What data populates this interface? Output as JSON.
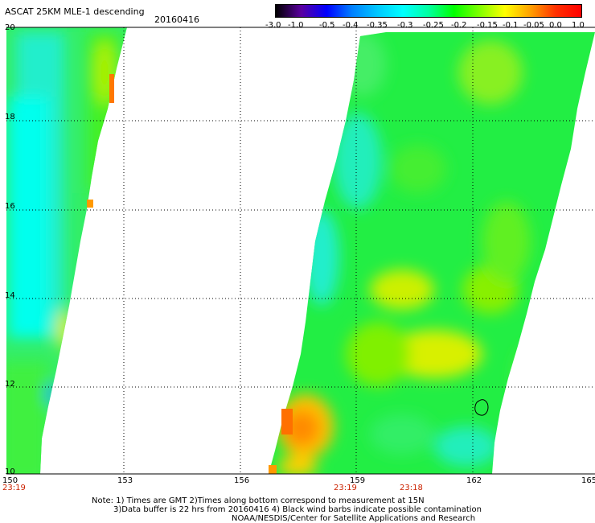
{
  "header": {
    "title": "ASCAT 25KM MLE-1 descending",
    "date": "20160416"
  },
  "colorbar": {
    "labels": [
      "-3.0",
      "-1.0",
      "-0.5",
      "-0.4",
      "-0.35",
      "-0.3",
      "-0.25",
      "-0.2",
      "-0.15",
      "-0.1",
      "-0.05",
      "0.0",
      "1.0"
    ],
    "colors": [
      "#000000",
      "#5a00a0",
      "#0000ff",
      "#0080ff",
      "#00c8ff",
      "#00ffff",
      "#00ffa0",
      "#00ff00",
      "#80ff00",
      "#ffff00",
      "#ffa000",
      "#ff3000",
      "#ff0000"
    ]
  },
  "axes": {
    "lat_labels": [
      "20",
      "18",
      "16",
      "14",
      "12",
      "10"
    ],
    "lon_labels": [
      "150",
      "153",
      "156",
      "159",
      "162",
      "165"
    ]
  },
  "pass_times": [
    "23:19",
    "23:19",
    "23:18"
  ],
  "footer": {
    "line1": "Note: 1) Times are GMT 2)Times along bottom correspond to measurement at 15N",
    "line2": "3)Data buffer is 22 hrs from 20160416 4) Black wind barbs indicate possible contamination",
    "line3": "NOAA/NESDIS/Center for Satellite Applications and Research"
  }
}
